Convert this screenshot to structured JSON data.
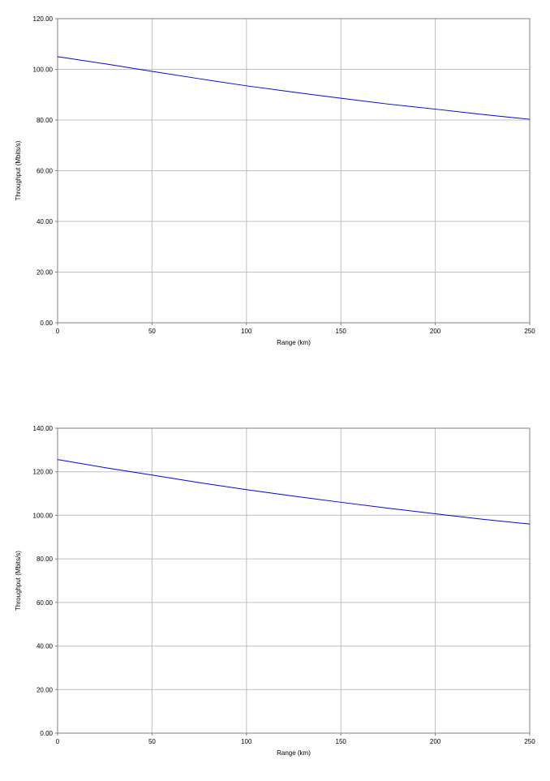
{
  "chart_data": [
    {
      "type": "line",
      "xlabel": "Range (km)",
      "ylabel": "Throughput (Mbits/s)",
      "xlim": [
        0,
        250
      ],
      "ylim": [
        0,
        120
      ],
      "x_ticks": [
        "0",
        "50",
        "100",
        "150",
        "200",
        "250"
      ],
      "y_ticks": [
        "0.00",
        "20.00",
        "40.00",
        "60.00",
        "80.00",
        "100.00",
        "120.00"
      ],
      "grid": "vertical and horizontal",
      "legend": "none",
      "series": [
        {
          "color": "#0000ff",
          "x": [
            0,
            25,
            50,
            75,
            100,
            125,
            150,
            175,
            200,
            225,
            250
          ],
          "y": [
            105.0,
            102.2,
            99.2,
            96.3,
            93.5,
            91.0,
            88.6,
            86.3,
            84.3,
            82.2,
            80.3
          ]
        }
      ]
    },
    {
      "type": "line",
      "xlabel": "Range (km)",
      "ylabel": "Throughput (Mbits/s)",
      "xlim": [
        0,
        250
      ],
      "ylim": [
        0,
        140
      ],
      "x_ticks": [
        "0",
        "50",
        "100",
        "150",
        "200",
        "250"
      ],
      "y_ticks": [
        "0.00",
        "20.00",
        "40.00",
        "60.00",
        "80.00",
        "100.00",
        "120.00",
        "140.00"
      ],
      "grid": "vertical and horizontal",
      "legend": "none",
      "series": [
        {
          "color": "#0000ff",
          "x": [
            0,
            25,
            50,
            75,
            100,
            125,
            150,
            175,
            200,
            225,
            250
          ],
          "y": [
            125.6,
            121.9,
            118.5,
            115.0,
            111.8,
            108.8,
            106.0,
            103.3,
            100.7,
            98.2,
            96.0
          ]
        }
      ]
    }
  ]
}
